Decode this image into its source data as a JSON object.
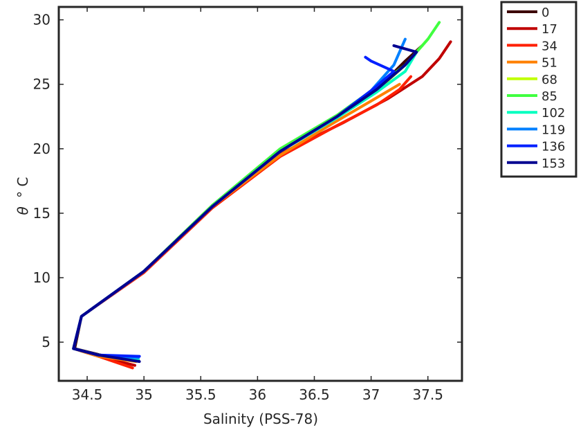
{
  "chart_data": {
    "type": "line",
    "title": "",
    "xlabel": "Salinity (PSS-78)",
    "ylabel_symbol": "θ",
    "ylabel_unit": "° C",
    "xlim": [
      34.25,
      37.8
    ],
    "ylim": [
      2,
      31
    ],
    "xticks": [
      34.5,
      35,
      35.5,
      36,
      36.5,
      37,
      37.5
    ],
    "yticks": [
      5,
      10,
      15,
      20,
      25,
      30
    ],
    "grid": false,
    "legend_position": "outside-top-right",
    "series": [
      {
        "name": "0",
        "color": "#3c0000",
        "x": [
          34.95,
          34.62,
          34.39,
          34.45,
          35.0,
          35.6,
          36.2,
          36.7,
          37.05,
          37.3,
          37.45
        ],
        "y": [
          3.6,
          4.0,
          4.5,
          7.0,
          10.5,
          15.5,
          19.8,
          22.5,
          24.6,
          26.8,
          28.0
        ]
      },
      {
        "name": "17",
        "color": "#c00000",
        "x": [
          34.92,
          34.6,
          34.38,
          34.45,
          35.0,
          35.6,
          36.2,
          36.75,
          37.15,
          37.45,
          37.6,
          37.7
        ],
        "y": [
          3.2,
          3.9,
          4.5,
          7.0,
          10.5,
          15.5,
          19.6,
          22.0,
          23.9,
          25.6,
          27.0,
          28.3
        ]
      },
      {
        "name": "34",
        "color": "#ff2000",
        "x": [
          34.9,
          34.6,
          34.38,
          34.45,
          35.0,
          35.6,
          36.2,
          36.7,
          37.05,
          37.25,
          37.35
        ],
        "y": [
          3.0,
          3.9,
          4.5,
          7.0,
          10.4,
          15.4,
          19.4,
          21.8,
          23.4,
          24.6,
          25.6
        ]
      },
      {
        "name": "51",
        "color": "#ff8000",
        "x": [
          34.93,
          34.6,
          34.38,
          34.45,
          35.0,
          35.6,
          36.2,
          36.65,
          37.0,
          37.25
        ],
        "y": [
          3.5,
          3.9,
          4.5,
          7.0,
          10.5,
          15.5,
          19.5,
          21.9,
          23.7,
          25.0
        ]
      },
      {
        "name": "68",
        "color": "#c0ff00",
        "x": [
          34.94,
          34.6,
          34.38,
          34.45,
          35.0,
          35.6,
          36.2,
          36.7,
          37.05,
          37.3,
          37.5
        ],
        "y": [
          3.7,
          4.0,
          4.5,
          7.0,
          10.5,
          15.6,
          19.9,
          22.5,
          24.5,
          26.5,
          28.5
        ]
      },
      {
        "name": "85",
        "color": "#40ff40",
        "x": [
          34.94,
          34.6,
          34.38,
          34.45,
          35.0,
          35.6,
          36.2,
          36.7,
          37.05,
          37.3,
          37.5,
          37.6
        ],
        "y": [
          3.8,
          4.0,
          4.5,
          7.0,
          10.5,
          15.6,
          20.0,
          22.6,
          24.8,
          26.5,
          28.5,
          29.8
        ]
      },
      {
        "name": "102",
        "color": "#00ffc0",
        "x": [
          34.95,
          34.6,
          34.38,
          34.45,
          35.0,
          35.6,
          36.2,
          36.7,
          37.05,
          37.3,
          37.4
        ],
        "y": [
          3.7,
          4.0,
          4.5,
          7.0,
          10.5,
          15.5,
          19.8,
          22.4,
          24.4,
          26.0,
          27.5
        ]
      },
      {
        "name": "119",
        "color": "#0080ff",
        "x": [
          34.95,
          34.6,
          34.38,
          34.45,
          35.0,
          35.6,
          36.2,
          36.7,
          37.0,
          37.2,
          37.3
        ],
        "y": [
          3.8,
          4.0,
          4.5,
          7.0,
          10.5,
          15.5,
          19.8,
          22.5,
          24.5,
          26.5,
          28.5
        ]
      },
      {
        "name": "136",
        "color": "#0020ff",
        "x": [
          34.96,
          34.6,
          34.38,
          34.45,
          35.0,
          35.6,
          36.2,
          36.7,
          37.0,
          37.2,
          37.0,
          36.95
        ],
        "y": [
          3.9,
          4.0,
          4.5,
          7.0,
          10.5,
          15.5,
          19.8,
          22.5,
          24.5,
          26.0,
          26.8,
          27.1
        ]
      },
      {
        "name": "153",
        "color": "#000090",
        "x": [
          34.96,
          34.6,
          34.38,
          34.45,
          35.0,
          35.6,
          36.2,
          36.7,
          37.05,
          37.3,
          37.4,
          37.2
        ],
        "y": [
          3.5,
          4.0,
          4.5,
          7.0,
          10.5,
          15.5,
          19.8,
          22.5,
          24.6,
          26.5,
          27.5,
          28.0
        ]
      }
    ]
  }
}
